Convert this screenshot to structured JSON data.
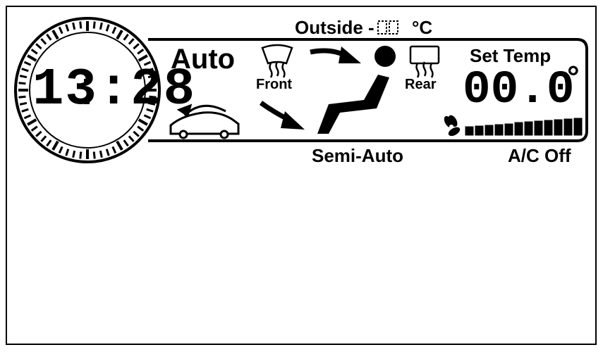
{
  "display": {
    "clock_time": "13:28",
    "mode_label": "Auto",
    "outside_label": "Outside -",
    "outside_unit": "°C",
    "front_label": "Front",
    "rear_label": "Rear",
    "set_temp_label": "Set Temp",
    "set_temp_value": "00.0",
    "degree_symbol": "°",
    "semi_auto_label": "Semi-Auto",
    "ac_label": "A/C Off",
    "fan_level_fraction": 1.0,
    "fan_segments_total": 12
  },
  "icons": {
    "front_defrost": "front-defrost-icon",
    "rear_defrost": "rear-defrost-icon",
    "seat": "seat-occupant-icon",
    "car_recirc": "car-recirculation-icon",
    "fan": "fan-icon"
  }
}
